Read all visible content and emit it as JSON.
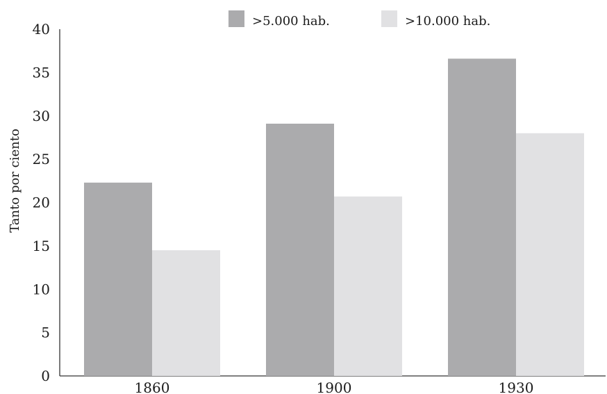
{
  "chart_data": {
    "type": "bar",
    "categories": [
      "1860",
      "1900",
      "1930"
    ],
    "series": [
      {
        "name": ">5.000 hab.",
        "values": [
          22.3,
          29.1,
          36.6
        ],
        "color": "#ababad"
      },
      {
        "name": ">10.000 hab.",
        "values": [
          14.5,
          20.7,
          28.0
        ],
        "color": "#e1e1e3"
      }
    ],
    "title": "",
    "xlabel": "",
    "ylabel": "Tanto por ciento",
    "ylim": [
      0,
      40
    ],
    "yticks": [
      "0",
      "5",
      "10",
      "15",
      "20",
      "25",
      "30",
      "35",
      "40"
    ],
    "grid": false,
    "legend_position": "top"
  }
}
